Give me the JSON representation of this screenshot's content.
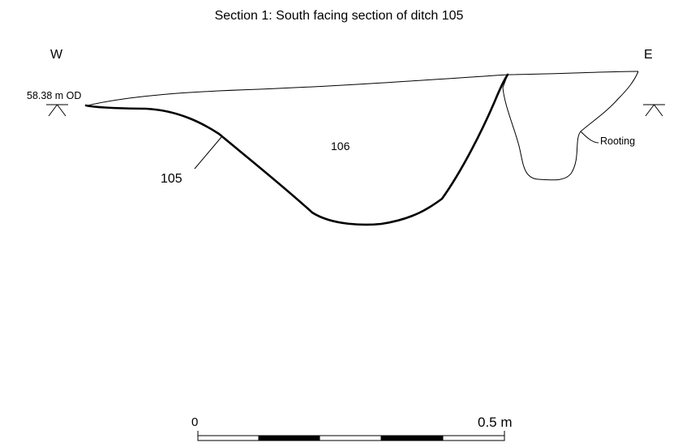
{
  "title": "Section 1: South facing section of ditch 105",
  "orientation": {
    "west": "W",
    "east": "E"
  },
  "datum_level": "58.38 m OD",
  "contexts": {
    "fill": "106",
    "cut": "105",
    "root_label": "Rooting"
  },
  "scale_bar": {
    "start_label": "0",
    "end_label": "0.5 m",
    "segments": 5
  },
  "colors": {
    "ink": "#000000",
    "paper": "#ffffff"
  }
}
